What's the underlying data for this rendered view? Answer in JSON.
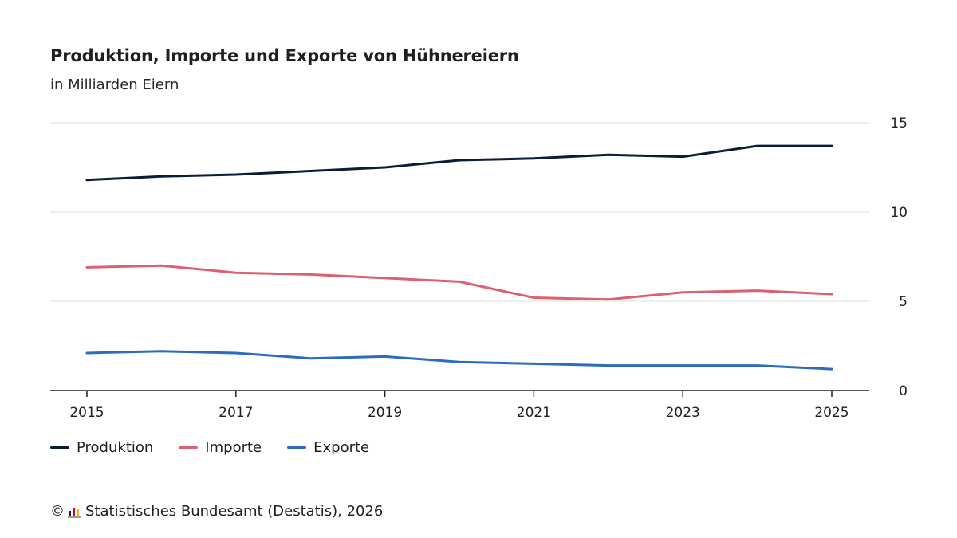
{
  "chart_data": {
    "type": "line",
    "title": "Produktion, Importe und Exporte von Hühnereiern",
    "subtitle": "in Milliarden Eiern",
    "x": [
      2015,
      2016,
      2017,
      2018,
      2019,
      2020,
      2021,
      2022,
      2023,
      2024,
      2025
    ],
    "x_tick_labels": [
      "2015",
      "2017",
      "2019",
      "2021",
      "2023",
      "2025"
    ],
    "y_tick_labels": [
      "0",
      "5",
      "10",
      "15"
    ],
    "ylim": [
      0,
      15
    ],
    "grid": true,
    "y_axis_position": "right",
    "legend_position": "bottom-left",
    "series": [
      {
        "name": "Produktion",
        "color": "#0d1b3a",
        "values": [
          11.8,
          12.0,
          12.1,
          12.3,
          12.5,
          12.9,
          13.0,
          13.2,
          13.1,
          13.7,
          13.7
        ]
      },
      {
        "name": "Importe",
        "color": "#db6070",
        "values": [
          6.9,
          7.0,
          6.6,
          6.5,
          6.3,
          6.1,
          5.2,
          5.1,
          5.5,
          5.6,
          5.4
        ]
      },
      {
        "name": "Exporte",
        "color": "#2c6cbf",
        "values": [
          2.1,
          2.2,
          2.1,
          1.8,
          1.9,
          1.6,
          1.5,
          1.4,
          1.4,
          1.4,
          1.2
        ]
      }
    ]
  },
  "footer": {
    "copyright_symbol": "©",
    "logo_icon": "destatis-logo-icon",
    "source": "Statistisches Bundesamt (Destatis), 2026"
  }
}
